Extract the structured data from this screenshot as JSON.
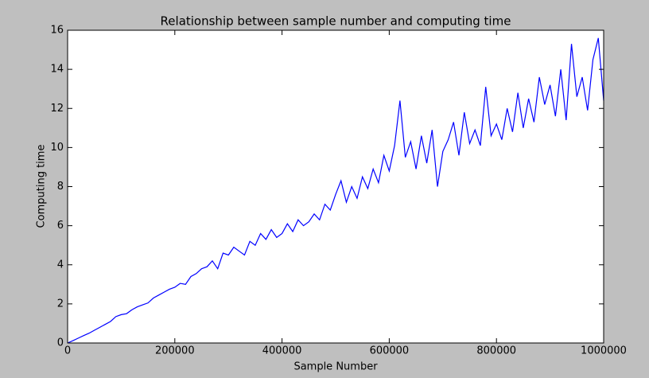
{
  "chart_data": {
    "type": "line",
    "title": "Relationship between sample number and computing time",
    "x_label": "Sample Number",
    "y_label": "Computing time",
    "x": [
      0,
      10000,
      20000,
      30000,
      40000,
      50000,
      60000,
      70000,
      80000,
      90000,
      100000,
      110000,
      120000,
      130000,
      140000,
      150000,
      160000,
      170000,
      180000,
      190000,
      200000,
      210000,
      220000,
      230000,
      240000,
      250000,
      260000,
      270000,
      280000,
      290000,
      300000,
      310000,
      320000,
      330000,
      340000,
      350000,
      360000,
      370000,
      380000,
      390000,
      400000,
      410000,
      420000,
      430000,
      440000,
      450000,
      460000,
      470000,
      480000,
      490000,
      500000,
      510000,
      520000,
      530000,
      540000,
      550000,
      560000,
      570000,
      580000,
      590000,
      600000,
      610000,
      620000,
      630000,
      640000,
      650000,
      660000,
      670000,
      680000,
      690000,
      700000,
      710000,
      720000,
      730000,
      740000,
      750000,
      760000,
      770000,
      780000,
      790000,
      800000,
      810000,
      820000,
      830000,
      840000,
      850000,
      860000,
      870000,
      880000,
      890000,
      900000,
      910000,
      920000,
      930000,
      940000,
      950000,
      960000,
      970000,
      980000,
      990000,
      1000000
    ],
    "series": [
      {
        "name": "Computing time",
        "color": "#0000ff",
        "values": [
          0,
          0.12,
          0.25,
          0.38,
          0.5,
          0.65,
          0.8,
          0.95,
          1.1,
          1.35,
          1.45,
          1.5,
          1.7,
          1.85,
          1.95,
          2.05,
          2.3,
          2.45,
          2.6,
          2.75,
          2.85,
          3.05,
          3.0,
          3.4,
          3.55,
          3.8,
          3.9,
          4.2,
          3.8,
          4.6,
          4.5,
          4.9,
          4.7,
          4.5,
          5.2,
          5.0,
          5.6,
          5.3,
          5.8,
          5.4,
          5.6,
          6.1,
          5.7,
          6.3,
          6.0,
          6.2,
          6.6,
          6.3,
          7.1,
          6.8,
          7.6,
          8.3,
          7.2,
          8.0,
          7.4,
          8.5,
          7.9,
          8.9,
          8.2,
          9.6,
          8.8,
          10.1,
          12.4,
          9.5,
          10.3,
          8.9,
          10.6,
          9.2,
          10.9,
          8.0,
          9.8,
          10.4,
          11.3,
          9.6,
          11.8,
          10.2,
          10.9,
          10.1,
          13.1,
          10.6,
          11.2,
          10.4,
          12.0,
          10.8,
          12.8,
          11.0,
          12.5,
          11.3,
          13.6,
          12.2,
          13.2,
          11.6,
          14.0,
          11.4,
          15.3,
          12.6,
          13.6,
          11.9,
          14.5,
          15.6,
          12.4
        ]
      }
    ],
    "xlim": [
      0,
      1000000
    ],
    "ylim": [
      0,
      16
    ],
    "xticks": [
      0,
      200000,
      400000,
      600000,
      800000,
      1000000
    ],
    "yticks": [
      0,
      2,
      4,
      6,
      8,
      10,
      12,
      14,
      16
    ],
    "grid": false
  }
}
